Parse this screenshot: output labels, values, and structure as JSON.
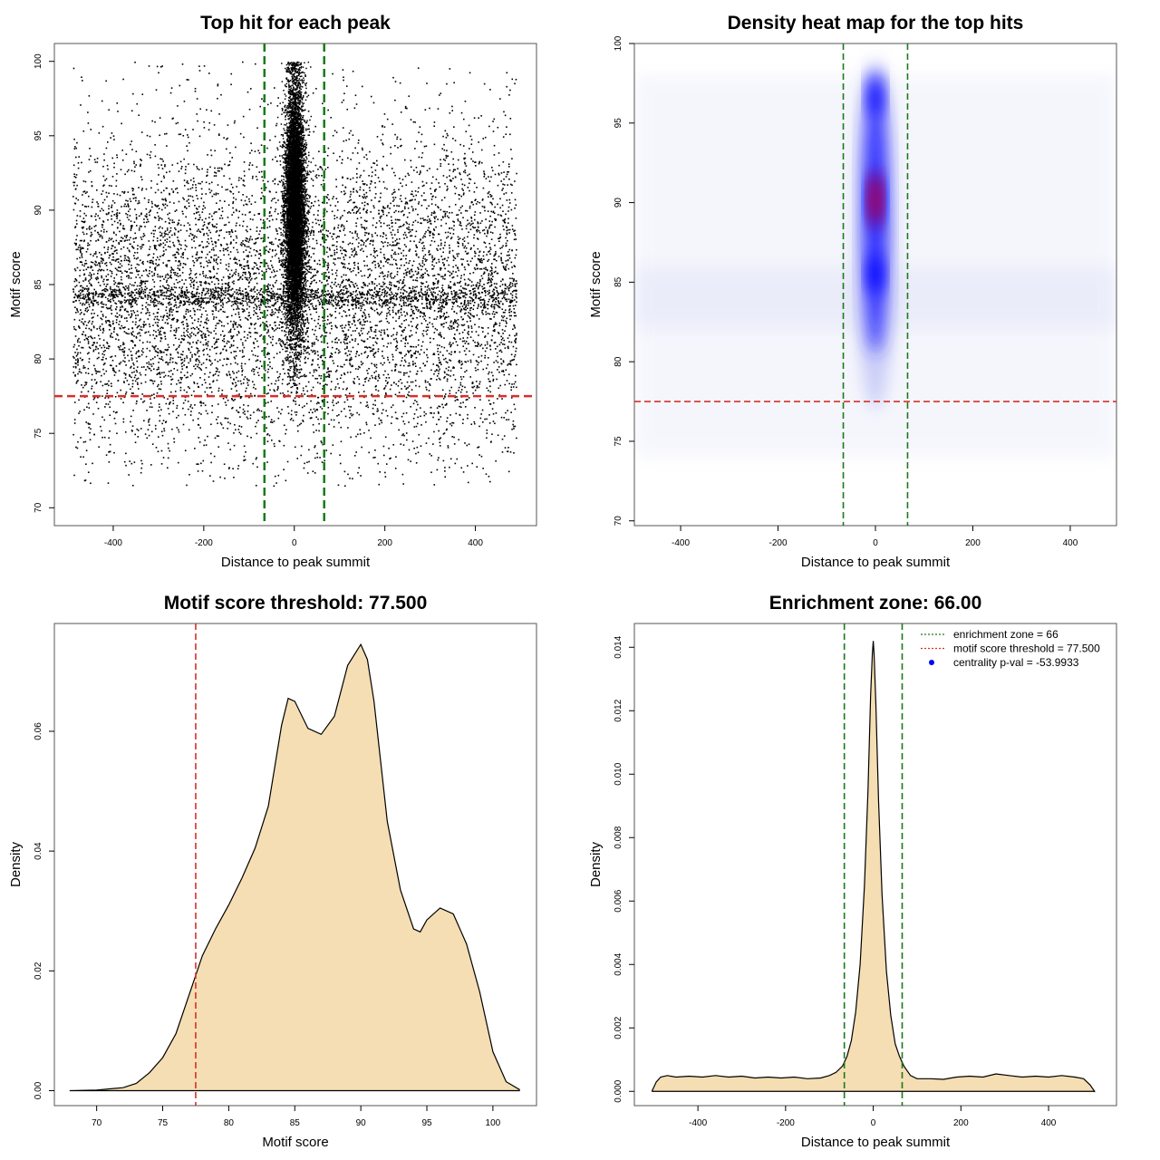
{
  "chart_data": [
    {
      "type": "scatter",
      "title": "Top hit for each peak",
      "xlabel": "Distance to peak summit",
      "ylabel": "Motif score",
      "xlim": [
        -530,
        535
      ],
      "ylim": [
        68.8,
        101.2
      ],
      "xticks": [
        -400,
        -200,
        0,
        200,
        400
      ],
      "yticks": [
        70,
        75,
        80,
        85,
        90,
        95,
        100
      ],
      "point_color": "#000000",
      "point_count_approx": 22000,
      "distribution": {
        "background_x_range": [
          -490,
          490
        ],
        "background_score_mode": 84.5,
        "central_cluster_x_range": [
          -25,
          25
        ],
        "central_cluster_score_range": [
          78,
          100
        ]
      },
      "hlines": [
        {
          "y": 77.5,
          "color": "#d7302a",
          "style": "dashed"
        }
      ],
      "vlines": [
        {
          "x": -66,
          "color": "#1a7a1a",
          "style": "dashed"
        },
        {
          "x": 66,
          "color": "#1a7a1a",
          "style": "dashed"
        }
      ],
      "grid": false
    },
    {
      "type": "heatmap",
      "title": "Density heat map for the top hits",
      "xlabel": "Distance to peak summit",
      "ylabel": "Motif score",
      "xlim": [
        -495,
        495
      ],
      "ylim": [
        69.7,
        100
      ],
      "xticks": [
        -400,
        -200,
        0,
        200,
        400
      ],
      "yticks": [
        70,
        75,
        80,
        85,
        90,
        95,
        100
      ],
      "colors": [
        "#ffffff",
        "#0000ff",
        "#ff0000"
      ],
      "density_centers": [
        {
          "x": 0,
          "y": 90.2,
          "weight": 1.0
        },
        {
          "x": 0,
          "y": 96.8,
          "weight": 0.75
        },
        {
          "x": 0,
          "y": 85.5,
          "weight": 0.6
        }
      ],
      "hlines": [
        {
          "y": 77.5,
          "color": "#d7302a",
          "style": "dashed"
        }
      ],
      "vlines": [
        {
          "x": -66,
          "color": "#1a7a1a",
          "style": "dashed"
        },
        {
          "x": 66,
          "color": "#1a7a1a",
          "style": "dashed"
        }
      ],
      "grid": false
    },
    {
      "type": "area",
      "title": "Motif score threshold: 77.500",
      "xlabel": "Motif score",
      "ylabel": "Density",
      "xlim": [
        66.8,
        103.3
      ],
      "ylim": [
        -0.0025,
        0.078
      ],
      "xticks": [
        70,
        75,
        80,
        85,
        90,
        95,
        100
      ],
      "yticks": [
        0.0,
        0.02,
        0.04,
        0.06
      ],
      "ytick_labels": [
        "0.00",
        "0.02",
        "0.04",
        "0.06"
      ],
      "fill": "#f5deb3",
      "line": "#000000",
      "x": [
        68,
        70,
        72,
        73,
        74,
        75,
        76,
        77,
        78,
        79,
        80,
        81,
        82,
        83,
        84,
        84.5,
        85,
        86,
        87,
        88,
        89,
        90,
        90.5,
        91,
        92,
        93,
        94,
        94.5,
        95,
        96,
        97,
        98,
        99,
        100,
        101,
        102
      ],
      "y": [
        0,
        0.0001,
        0.0005,
        0.0012,
        0.003,
        0.0055,
        0.0095,
        0.016,
        0.0225,
        0.027,
        0.031,
        0.0355,
        0.0405,
        0.0475,
        0.061,
        0.0655,
        0.065,
        0.0605,
        0.0595,
        0.0625,
        0.071,
        0.0745,
        0.072,
        0.065,
        0.045,
        0.0335,
        0.027,
        0.0265,
        0.0285,
        0.0305,
        0.0295,
        0.0245,
        0.0165,
        0.0065,
        0.0015,
        0.0002
      ],
      "vlines": [
        {
          "x": 77.5,
          "color": "#d7302a",
          "style": "dashed"
        }
      ],
      "grid": false
    },
    {
      "type": "area",
      "title": "Enrichment zone: 66.00",
      "xlabel": "Distance to peak summit",
      "ylabel": "Density",
      "xlim": [
        -545,
        555
      ],
      "ylim": [
        -0.00045,
        0.01475
      ],
      "xticks": [
        -400,
        -200,
        0,
        200,
        400
      ],
      "yticks": [
        0.0,
        0.002,
        0.004,
        0.006,
        0.008,
        0.01,
        0.012,
        0.014
      ],
      "ytick_labels": [
        "0.000",
        "0.002",
        "0.004",
        "0.006",
        "0.008",
        "0.010",
        "0.012",
        "0.014"
      ],
      "fill": "#f5deb3",
      "line": "#000000",
      "x": [
        -505,
        -495,
        -485,
        -470,
        -450,
        -420,
        -390,
        -360,
        -330,
        -300,
        -270,
        -240,
        -210,
        -180,
        -150,
        -120,
        -100,
        -85,
        -70,
        -60,
        -50,
        -40,
        -30,
        -20,
        -12,
        -6,
        -2,
        0,
        2,
        6,
        12,
        20,
        30,
        40,
        50,
        60,
        70,
        85,
        100,
        130,
        160,
        190,
        220,
        250,
        280,
        310,
        340,
        370,
        400,
        430,
        460,
        480,
        495,
        505
      ],
      "y": [
        0,
        0.0003,
        0.00045,
        0.0005,
        0.00045,
        0.00048,
        0.00045,
        0.0005,
        0.00045,
        0.00048,
        0.00042,
        0.00045,
        0.00042,
        0.00045,
        0.0004,
        0.00042,
        0.0005,
        0.0006,
        0.0008,
        0.0011,
        0.0016,
        0.0025,
        0.004,
        0.0065,
        0.0095,
        0.0125,
        0.0138,
        0.0142,
        0.0138,
        0.0122,
        0.0092,
        0.0062,
        0.0038,
        0.0024,
        0.0015,
        0.0011,
        0.0008,
        0.0005,
        0.0004,
        0.0004,
        0.00038,
        0.00045,
        0.00048,
        0.00045,
        0.00055,
        0.0005,
        0.00045,
        0.00048,
        0.00045,
        0.0005,
        0.00045,
        0.0004,
        0.0002,
        0
      ],
      "vlines": [
        {
          "x": -66,
          "color": "#1a7a1a",
          "style": "dashed"
        },
        {
          "x": 66,
          "color": "#1a7a1a",
          "style": "dashed"
        }
      ],
      "legend": {
        "position": "top-right",
        "entries": [
          {
            "label": "enrichment zone = 66",
            "color": "#1a7a1a",
            "symbol": "dotted-line"
          },
          {
            "label": "motif score threshold = 77.500",
            "color": "#d7302a",
            "symbol": "dotted-line"
          },
          {
            "label": "centrality p-val = -53.9933",
            "color": "#0000ff",
            "symbol": "dot"
          }
        ]
      },
      "grid": false
    }
  ]
}
